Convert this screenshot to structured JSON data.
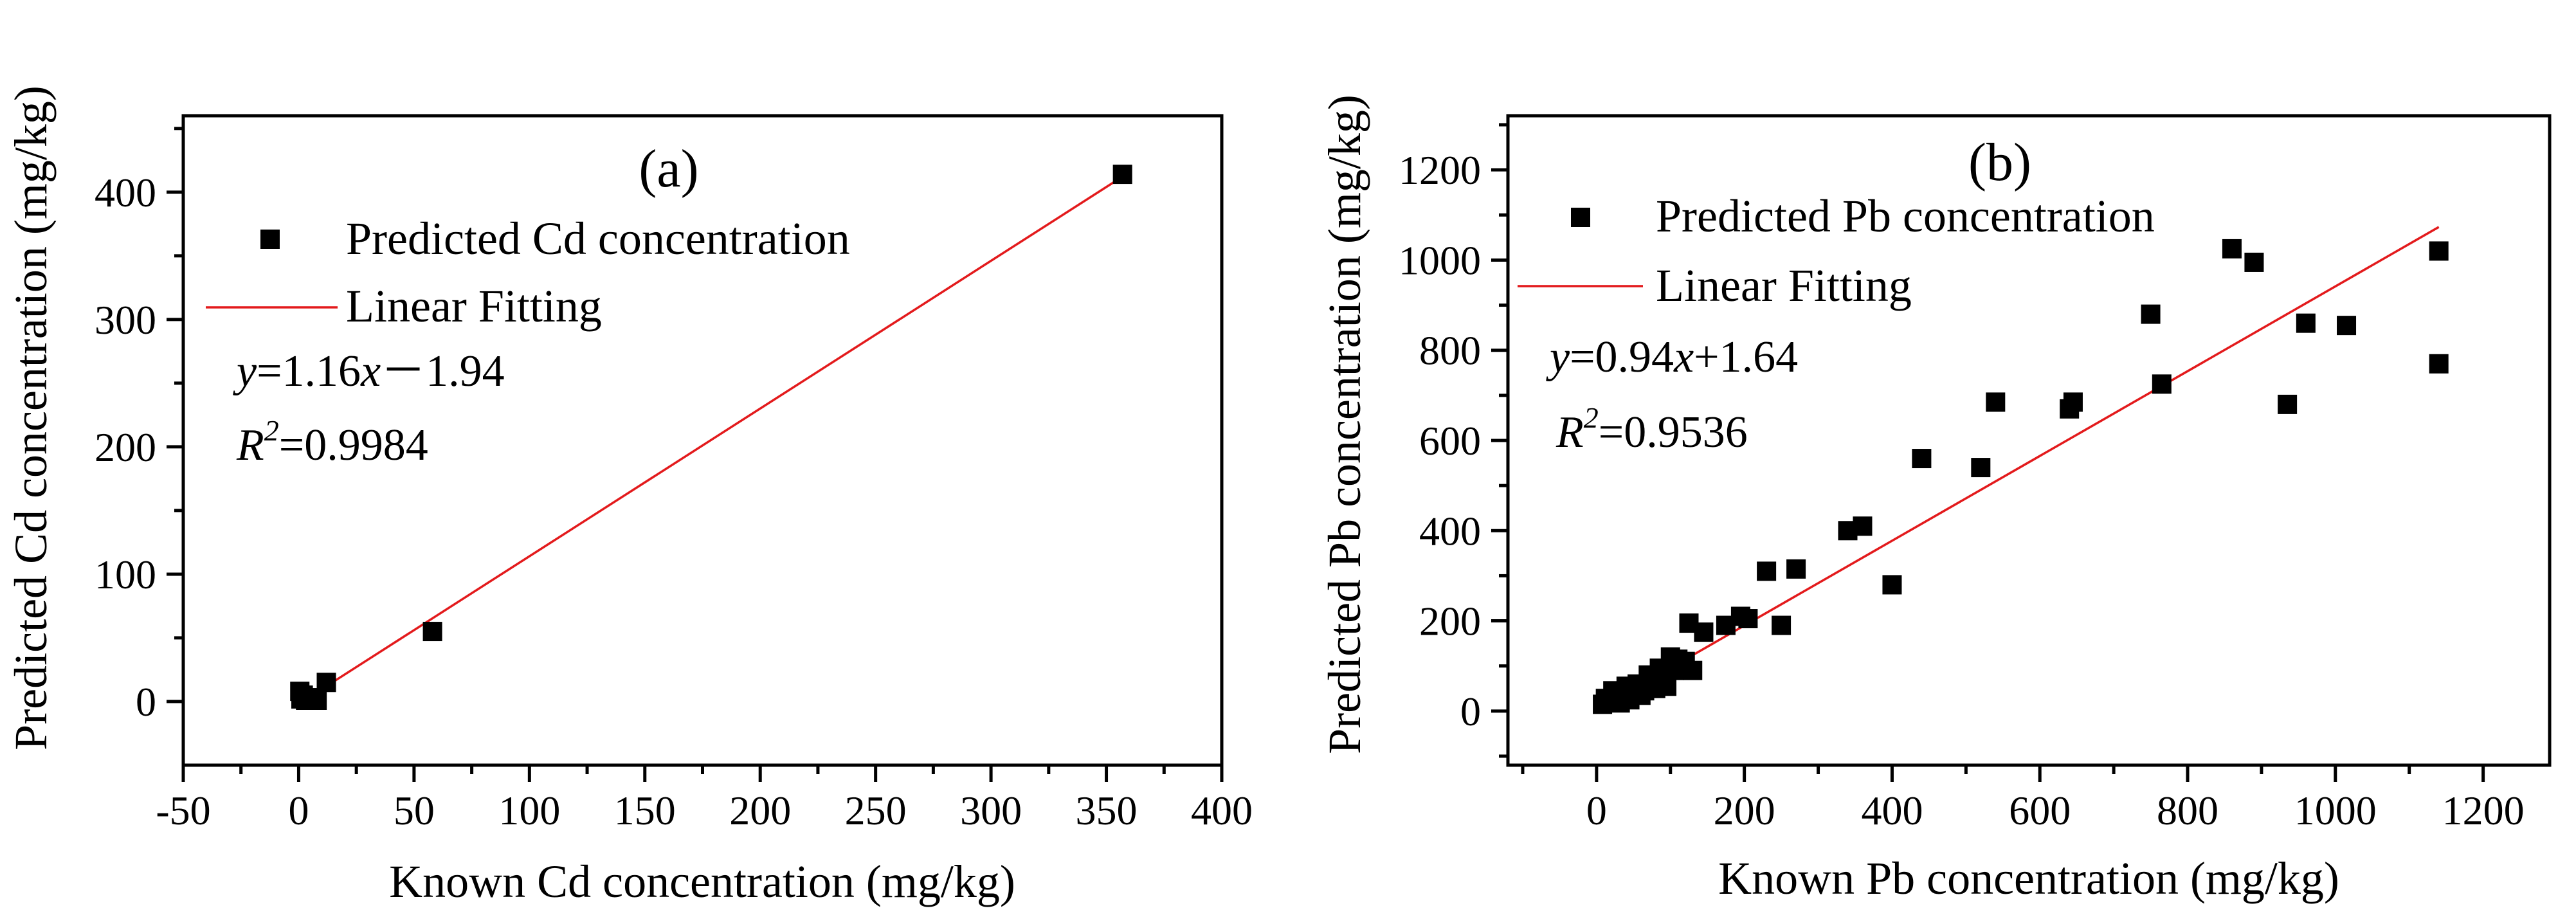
{
  "chart_data": [
    {
      "type": "scatter",
      "panel_label": "(a)",
      "xlabel": "Known Cd concentration (mg/kg)",
      "ylabel": "Predicted Cd concentration (mg/kg)",
      "xlim": [
        -50,
        400
      ],
      "ylim": [
        -50,
        460
      ],
      "xticks": [
        -50,
        0,
        50,
        100,
        150,
        200,
        250,
        300,
        350,
        400
      ],
      "yticks": [
        0,
        100,
        200,
        300,
        400
      ],
      "legend": {
        "marker_label": "Predicted Cd concentration",
        "line_label": "Linear Fitting",
        "placement": "upper-left"
      },
      "equation": {
        "y": "y",
        "rest1": "=1.16",
        "x": "x",
        "rest2": "－1.94"
      },
      "r2": {
        "R": "R",
        "sup": "2",
        "rest": "=0.9984"
      },
      "fit": {
        "slope": 1.16,
        "intercept": -1.94,
        "x_range": [
          0,
          358
        ]
      },
      "points": [
        {
          "x": 0.5,
          "y": 8
        },
        {
          "x": 1,
          "y": 2
        },
        {
          "x": 2,
          "y": 5
        },
        {
          "x": 3,
          "y": 1
        },
        {
          "x": 4,
          "y": 3
        },
        {
          "x": 6,
          "y": 2
        },
        {
          "x": 8,
          "y": 1
        },
        {
          "x": 12,
          "y": 15
        },
        {
          "x": 58,
          "y": 55
        },
        {
          "x": 357,
          "y": 414
        }
      ]
    },
    {
      "type": "scatter",
      "panel_label": "(b)",
      "xlabel": "Known Pb concentration (mg/kg)",
      "ylabel": "Predicted Pb concentration (mg/kg)",
      "xlim": [
        -120,
        1290
      ],
      "ylim": [
        -120,
        1320
      ],
      "xticks": [
        0,
        200,
        400,
        600,
        800,
        1000,
        1200
      ],
      "yticks": [
        0,
        200,
        400,
        600,
        800,
        1000,
        1200
      ],
      "legend": {
        "marker_label": "Predicted Pb concentration",
        "line_label": "Linear Fitting",
        "placement": "upper-left"
      },
      "equation": {
        "y": "y",
        "rest1": "=0.94",
        "x": "x",
        "rest2": "+1.64"
      },
      "r2": {
        "R": "R",
        "sup": "2",
        "rest": "=0.9536"
      },
      "fit": {
        "slope": 0.94,
        "intercept": 1.64,
        "x_range": [
          0,
          1140
        ]
      },
      "points": [
        {
          "x": 8,
          "y": 15
        },
        {
          "x": 12,
          "y": 28
        },
        {
          "x": 18,
          "y": 22
        },
        {
          "x": 22,
          "y": 45
        },
        {
          "x": 28,
          "y": 30
        },
        {
          "x": 32,
          "y": 18
        },
        {
          "x": 36,
          "y": 40
        },
        {
          "x": 40,
          "y": 55
        },
        {
          "x": 45,
          "y": 25
        },
        {
          "x": 50,
          "y": 38
        },
        {
          "x": 55,
          "y": 60
        },
        {
          "x": 60,
          "y": 35
        },
        {
          "x": 65,
          "y": 45
        },
        {
          "x": 70,
          "y": 80
        },
        {
          "x": 75,
          "y": 65
        },
        {
          "x": 80,
          "y": 50
        },
        {
          "x": 85,
          "y": 95
        },
        {
          "x": 90,
          "y": 70
        },
        {
          "x": 95,
          "y": 55
        },
        {
          "x": 100,
          "y": 120
        },
        {
          "x": 105,
          "y": 90
        },
        {
          "x": 110,
          "y": 115
        },
        {
          "x": 115,
          "y": 100
        },
        {
          "x": 120,
          "y": 110
        },
        {
          "x": 125,
          "y": 195
        },
        {
          "x": 130,
          "y": 90
        },
        {
          "x": 145,
          "y": 175
        },
        {
          "x": 175,
          "y": 190
        },
        {
          "x": 195,
          "y": 210
        },
        {
          "x": 205,
          "y": 205
        },
        {
          "x": 230,
          "y": 310
        },
        {
          "x": 250,
          "y": 190
        },
        {
          "x": 270,
          "y": 315
        },
        {
          "x": 340,
          "y": 400
        },
        {
          "x": 360,
          "y": 410
        },
        {
          "x": 400,
          "y": 280
        },
        {
          "x": 440,
          "y": 560
        },
        {
          "x": 520,
          "y": 540
        },
        {
          "x": 540,
          "y": 685
        },
        {
          "x": 640,
          "y": 670
        },
        {
          "x": 645,
          "y": 685
        },
        {
          "x": 750,
          "y": 880
        },
        {
          "x": 765,
          "y": 725
        },
        {
          "x": 860,
          "y": 1025
        },
        {
          "x": 890,
          "y": 995
        },
        {
          "x": 935,
          "y": 680
        },
        {
          "x": 960,
          "y": 860
        },
        {
          "x": 1015,
          "y": 855
        },
        {
          "x": 1140,
          "y": 1020
        },
        {
          "x": 1140,
          "y": 770
        }
      ]
    }
  ]
}
